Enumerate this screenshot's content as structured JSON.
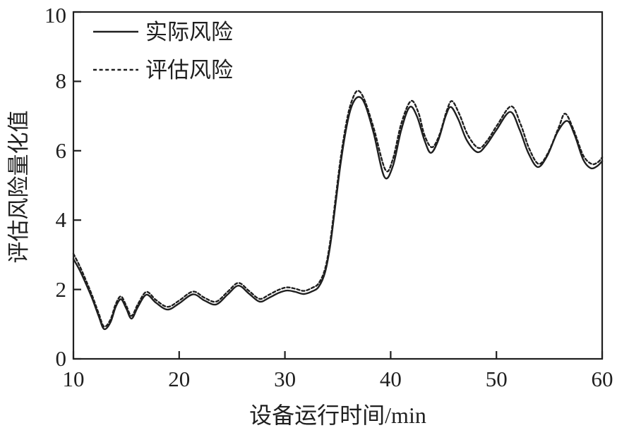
{
  "figure": {
    "background": "#ffffff",
    "line_color": "#1f1f1f",
    "text_color": "#1f1f1f"
  },
  "chart_data": {
    "type": "line",
    "title": "",
    "xlabel": "设备运行时间/min",
    "ylabel": "评估风险量化值",
    "xlim": [
      10,
      60
    ],
    "ylim": [
      0,
      10
    ],
    "x_ticks": [
      10,
      20,
      30,
      40,
      50,
      60
    ],
    "y_ticks": [
      0,
      2,
      4,
      6,
      8,
      10
    ],
    "x_tick_labels": [
      "10",
      "20",
      "30",
      "40",
      "50",
      "60"
    ],
    "y_tick_labels": [
      "0",
      "2",
      "4",
      "6",
      "8",
      "10"
    ],
    "grid": false,
    "legend_position": "top-left",
    "series": [
      {
        "name": "实际风险",
        "style": "solid",
        "color": "#1f1f1f",
        "points": [
          [
            10,
            2.88
          ],
          [
            10.6,
            2.55
          ],
          [
            11.2,
            2.15
          ],
          [
            11.8,
            1.72
          ],
          [
            12.4,
            1.22
          ],
          [
            12.9,
            0.86
          ],
          [
            13.5,
            1.05
          ],
          [
            14.0,
            1.5
          ],
          [
            14.5,
            1.72
          ],
          [
            15.0,
            1.45
          ],
          [
            15.5,
            1.16
          ],
          [
            16.1,
            1.5
          ],
          [
            16.9,
            1.85
          ],
          [
            17.8,
            1.62
          ],
          [
            18.9,
            1.42
          ],
          [
            20.0,
            1.6
          ],
          [
            21.3,
            1.86
          ],
          [
            22.4,
            1.68
          ],
          [
            23.5,
            1.57
          ],
          [
            24.6,
            1.86
          ],
          [
            25.6,
            2.11
          ],
          [
            26.6,
            1.88
          ],
          [
            27.6,
            1.65
          ],
          [
            28.5,
            1.76
          ],
          [
            29.4,
            1.9
          ],
          [
            30.2,
            1.97
          ],
          [
            31.0,
            1.93
          ],
          [
            31.8,
            1.87
          ],
          [
            32.6,
            1.95
          ],
          [
            33.2,
            2.08
          ],
          [
            33.8,
            2.5
          ],
          [
            34.3,
            3.3
          ],
          [
            34.8,
            4.5
          ],
          [
            35.3,
            5.7
          ],
          [
            35.9,
            6.8
          ],
          [
            36.4,
            7.35
          ],
          [
            37.0,
            7.55
          ],
          [
            37.6,
            7.32
          ],
          [
            38.4,
            6.5
          ],
          [
            39.4,
            5.25
          ],
          [
            40.2,
            5.55
          ],
          [
            41.0,
            6.6
          ],
          [
            41.8,
            7.26
          ],
          [
            42.5,
            6.98
          ],
          [
            43.2,
            6.3
          ],
          [
            43.8,
            5.94
          ],
          [
            44.5,
            6.3
          ],
          [
            45.2,
            7.0
          ],
          [
            45.7,
            7.26
          ],
          [
            46.4,
            6.9
          ],
          [
            47.2,
            6.3
          ],
          [
            48.2,
            5.96
          ],
          [
            49.0,
            6.15
          ],
          [
            50.0,
            6.6
          ],
          [
            51.3,
            7.12
          ],
          [
            52.2,
            6.6
          ],
          [
            53.0,
            5.95
          ],
          [
            53.9,
            5.53
          ],
          [
            54.8,
            5.85
          ],
          [
            55.8,
            6.55
          ],
          [
            56.7,
            6.86
          ],
          [
            57.4,
            6.45
          ],
          [
            58.2,
            5.75
          ],
          [
            58.9,
            5.5
          ],
          [
            59.5,
            5.55
          ],
          [
            60,
            5.7
          ]
        ]
      },
      {
        "name": "评估风险",
        "style": "dashed",
        "color": "#1f1f1f",
        "points": [
          [
            10,
            3.03
          ],
          [
            10.6,
            2.67
          ],
          [
            11.2,
            2.25
          ],
          [
            11.8,
            1.8
          ],
          [
            12.4,
            1.3
          ],
          [
            12.9,
            0.93
          ],
          [
            13.5,
            1.13
          ],
          [
            14.0,
            1.58
          ],
          [
            14.5,
            1.8
          ],
          [
            15.0,
            1.53
          ],
          [
            15.5,
            1.24
          ],
          [
            16.1,
            1.58
          ],
          [
            16.9,
            1.93
          ],
          [
            17.8,
            1.7
          ],
          [
            18.9,
            1.5
          ],
          [
            20.0,
            1.68
          ],
          [
            21.3,
            1.94
          ],
          [
            22.4,
            1.76
          ],
          [
            23.5,
            1.65
          ],
          [
            24.6,
            1.94
          ],
          [
            25.6,
            2.19
          ],
          [
            26.6,
            1.96
          ],
          [
            27.6,
            1.73
          ],
          [
            28.5,
            1.85
          ],
          [
            29.4,
            1.99
          ],
          [
            30.2,
            2.06
          ],
          [
            31.0,
            2.02
          ],
          [
            31.8,
            1.96
          ],
          [
            32.6,
            2.05
          ],
          [
            33.2,
            2.18
          ],
          [
            33.8,
            2.6
          ],
          [
            34.3,
            3.42
          ],
          [
            34.8,
            4.65
          ],
          [
            35.3,
            5.85
          ],
          [
            35.9,
            6.95
          ],
          [
            36.4,
            7.5
          ],
          [
            36.9,
            7.73
          ],
          [
            37.5,
            7.48
          ],
          [
            38.4,
            6.65
          ],
          [
            39.5,
            5.45
          ],
          [
            40.2,
            5.75
          ],
          [
            41.0,
            6.78
          ],
          [
            41.9,
            7.43
          ],
          [
            42.6,
            7.12
          ],
          [
            43.2,
            6.45
          ],
          [
            43.9,
            6.1
          ],
          [
            44.6,
            6.45
          ],
          [
            45.3,
            7.15
          ],
          [
            45.8,
            7.43
          ],
          [
            46.5,
            7.05
          ],
          [
            47.3,
            6.45
          ],
          [
            48.3,
            6.08
          ],
          [
            49.1,
            6.28
          ],
          [
            50.1,
            6.75
          ],
          [
            51.4,
            7.28
          ],
          [
            52.3,
            6.75
          ],
          [
            53.1,
            6.06
          ],
          [
            54.0,
            5.62
          ],
          [
            54.9,
            5.95
          ],
          [
            55.9,
            6.68
          ],
          [
            56.5,
            7.07
          ],
          [
            57.3,
            6.6
          ],
          [
            58.2,
            5.87
          ],
          [
            59.0,
            5.62
          ],
          [
            59.6,
            5.67
          ],
          [
            60,
            5.81
          ]
        ]
      }
    ]
  }
}
